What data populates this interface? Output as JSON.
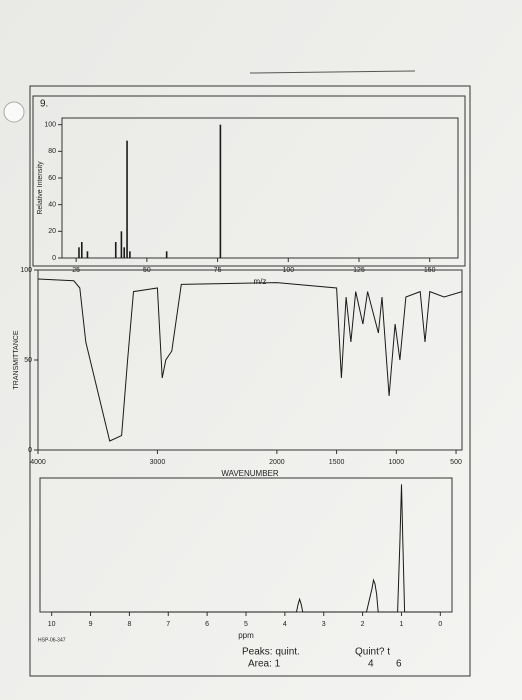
{
  "problem_number": "9.",
  "chart_data": [
    {
      "type": "bar",
      "xlabel": "m/z",
      "ylabel": "Relative Intensity",
      "color": "#1a1a1a",
      "x": [
        26,
        27,
        29,
        39,
        41,
        42,
        43,
        44,
        57,
        76
      ],
      "values": [
        8,
        12,
        5,
        12,
        20,
        8,
        88,
        5,
        5,
        100
      ],
      "xlim": [
        20,
        160
      ],
      "ylim": [
        0,
        105
      ],
      "xticks": [
        25,
        50,
        75,
        100,
        125,
        150
      ],
      "yticks": [
        0,
        20,
        40,
        60,
        80,
        100
      ]
    },
    {
      "type": "line",
      "xlabel": "WAVENUMBER",
      "ylabel": "TRANSMITTANCE",
      "color": "#1a1a1a",
      "x": [
        4000,
        3700,
        3650,
        3600,
        3400,
        3300,
        3250,
        3200,
        3000,
        2960,
        2930,
        2880,
        2800,
        2000,
        1500,
        1460,
        1420,
        1380,
        1340,
        1280,
        1240,
        1150,
        1120,
        1060,
        1010,
        970,
        920,
        800,
        760,
        720,
        600,
        450
      ],
      "values": [
        95,
        94,
        90,
        60,
        5,
        8,
        50,
        88,
        90,
        40,
        50,
        55,
        92,
        93,
        90,
        40,
        85,
        60,
        88,
        70,
        88,
        65,
        85,
        30,
        70,
        50,
        85,
        88,
        60,
        88,
        85,
        88
      ],
      "xlim": [
        4000,
        450
      ],
      "ylim": [
        0,
        100
      ],
      "xticks": [
        4000,
        3000,
        2000,
        1500,
        1000,
        500
      ],
      "yticks": [
        0,
        50,
        100
      ]
    },
    {
      "type": "line",
      "xlabel": "ppm",
      "id_label": "HSP-06-347",
      "color": "#1a1a1a",
      "x": [
        10,
        3.7,
        3.66,
        3.62,
        3.58,
        3.54,
        1.9,
        1.76,
        1.72,
        1.68,
        1.64,
        1.6,
        1.1,
        1.04,
        1.0,
        0.96,
        0.92,
        0
      ],
      "values": [
        0,
        0,
        6,
        10,
        6,
        0,
        0,
        18,
        25,
        22,
        14,
        0,
        0,
        55,
        100,
        50,
        0,
        0
      ],
      "xlim": [
        10.3,
        -0.3
      ],
      "ylim": [
        0,
        105
      ],
      "xticks": [
        10,
        9,
        8,
        7,
        6,
        5,
        4,
        3,
        2,
        1,
        0
      ],
      "annotations": [
        "Peaks: quint.",
        "Area: 1",
        "Quint? t",
        "4",
        "6"
      ]
    }
  ]
}
